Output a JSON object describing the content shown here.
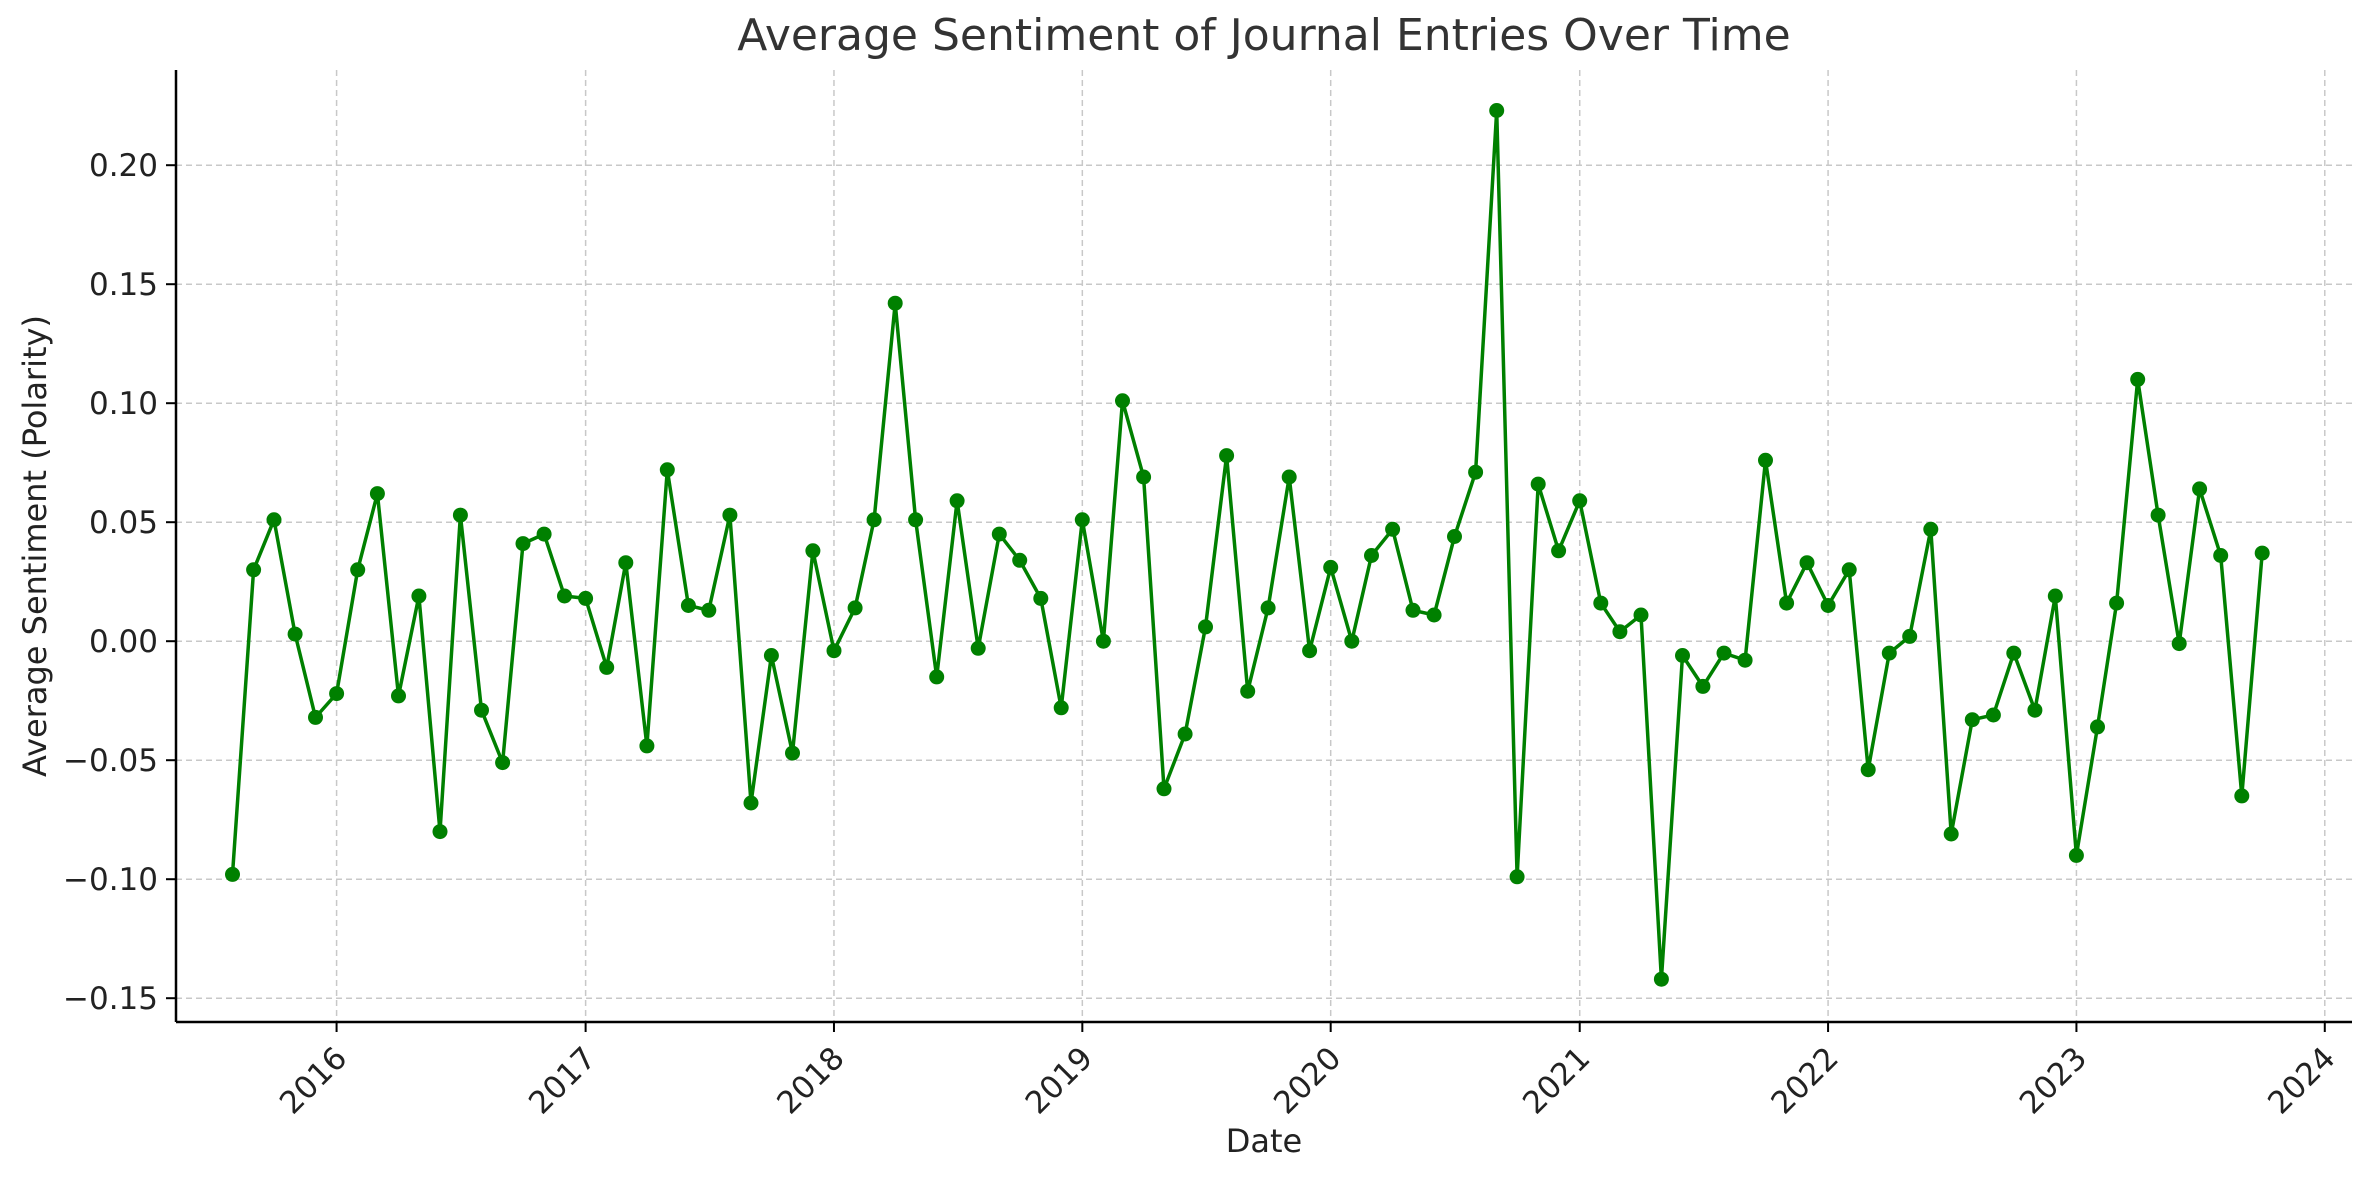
{
  "chart_data": {
    "type": "line",
    "title": "Average Sentiment of Journal Entries Over Time",
    "xlabel": "Date",
    "ylabel": "Average Sentiment (Polarity)",
    "x_ticks": [
      "2016",
      "2017",
      "2018",
      "2019",
      "2020",
      "2021",
      "2022",
      "2023",
      "2024"
    ],
    "y_ticks": [
      "0.20",
      "0.15",
      "0.10",
      "0.05",
      "0.00",
      "−0.05",
      "−0.10",
      "−0.15"
    ],
    "xlim": [
      "2015-05-10",
      "2024-02-10"
    ],
    "ylim": [
      -0.16,
      0.24
    ],
    "grid": true,
    "line_color": "#008000",
    "grid_color": "#c8c8c8",
    "series": [
      {
        "x": [
          "2015-08-01",
          "2015-09-01",
          "2015-10-01",
          "2015-11-01",
          "2015-12-01",
          "2016-01-01",
          "2016-02-01",
          "2016-03-01",
          "2016-04-01",
          "2016-05-01",
          "2016-06-01",
          "2016-07-01",
          "2016-08-01",
          "2016-09-01",
          "2016-10-01",
          "2016-11-01",
          "2016-12-01",
          "2017-01-01",
          "2017-02-01",
          "2017-03-01",
          "2017-04-01",
          "2017-05-01",
          "2017-06-01",
          "2017-07-01",
          "2017-08-01",
          "2017-09-01",
          "2017-10-01",
          "2017-11-01",
          "2017-12-01",
          "2018-01-01",
          "2018-02-01",
          "2018-03-01",
          "2018-04-01",
          "2018-05-01",
          "2018-06-01",
          "2018-07-01",
          "2018-08-01",
          "2018-09-01",
          "2018-10-01",
          "2018-11-01",
          "2018-12-01",
          "2019-01-01",
          "2019-02-01",
          "2019-03-01",
          "2019-04-01",
          "2019-05-01",
          "2019-06-01",
          "2019-07-01",
          "2019-08-01",
          "2019-09-01",
          "2019-10-01",
          "2019-11-01",
          "2019-12-01",
          "2020-01-01",
          "2020-02-01",
          "2020-03-01",
          "2020-04-01",
          "2020-05-01",
          "2020-06-01",
          "2020-07-01",
          "2020-08-01",
          "2020-09-01",
          "2020-10-01",
          "2020-11-01",
          "2020-12-01",
          "2021-01-01",
          "2021-02-01",
          "2021-03-01",
          "2021-04-01",
          "2021-05-01",
          "2021-06-01",
          "2021-07-01",
          "2021-08-01",
          "2021-09-01",
          "2021-10-01",
          "2021-11-01",
          "2021-12-01",
          "2022-01-01",
          "2022-02-01",
          "2022-03-01",
          "2022-04-01",
          "2022-05-01",
          "2022-06-01",
          "2022-07-01",
          "2022-08-01",
          "2022-09-01",
          "2022-10-01",
          "2022-11-01",
          "2022-12-01",
          "2023-01-01",
          "2023-02-01",
          "2023-03-01",
          "2023-04-01",
          "2023-05-01",
          "2023-06-01",
          "2023-07-01",
          "2023-08-01",
          "2023-09-01",
          "2023-10-01"
        ],
        "values": [
          -0.098,
          0.03,
          0.051,
          0.003,
          -0.032,
          -0.022,
          0.03,
          0.062,
          -0.023,
          0.019,
          -0.08,
          0.053,
          -0.029,
          -0.051,
          0.041,
          0.045,
          0.019,
          0.018,
          -0.011,
          0.033,
          -0.044,
          0.072,
          0.015,
          0.013,
          0.053,
          -0.068,
          -0.006,
          -0.047,
          0.038,
          -0.004,
          0.014,
          0.051,
          0.142,
          0.051,
          -0.015,
          0.059,
          -0.003,
          0.045,
          0.034,
          0.018,
          -0.028,
          0.051,
          0.0,
          0.101,
          0.069,
          -0.062,
          -0.039,
          0.006,
          0.078,
          -0.021,
          0.014,
          0.069,
          -0.004,
          0.031,
          0.0,
          0.036,
          0.047,
          0.013,
          0.011,
          0.044,
          0.071,
          0.223,
          -0.099,
          0.066,
          0.038,
          0.059,
          0.016,
          0.004,
          0.011,
          -0.142,
          -0.006,
          -0.019,
          -0.005,
          -0.008,
          0.076,
          0.016,
          0.033,
          0.015,
          0.03,
          -0.054,
          -0.005,
          0.002,
          0.047,
          -0.081,
          -0.033,
          -0.031,
          -0.005,
          -0.029,
          0.019,
          -0.09,
          -0.036,
          0.016,
          0.11,
          0.053,
          -0.001,
          0.064,
          0.036,
          -0.065,
          0.037
        ]
      }
    ]
  }
}
